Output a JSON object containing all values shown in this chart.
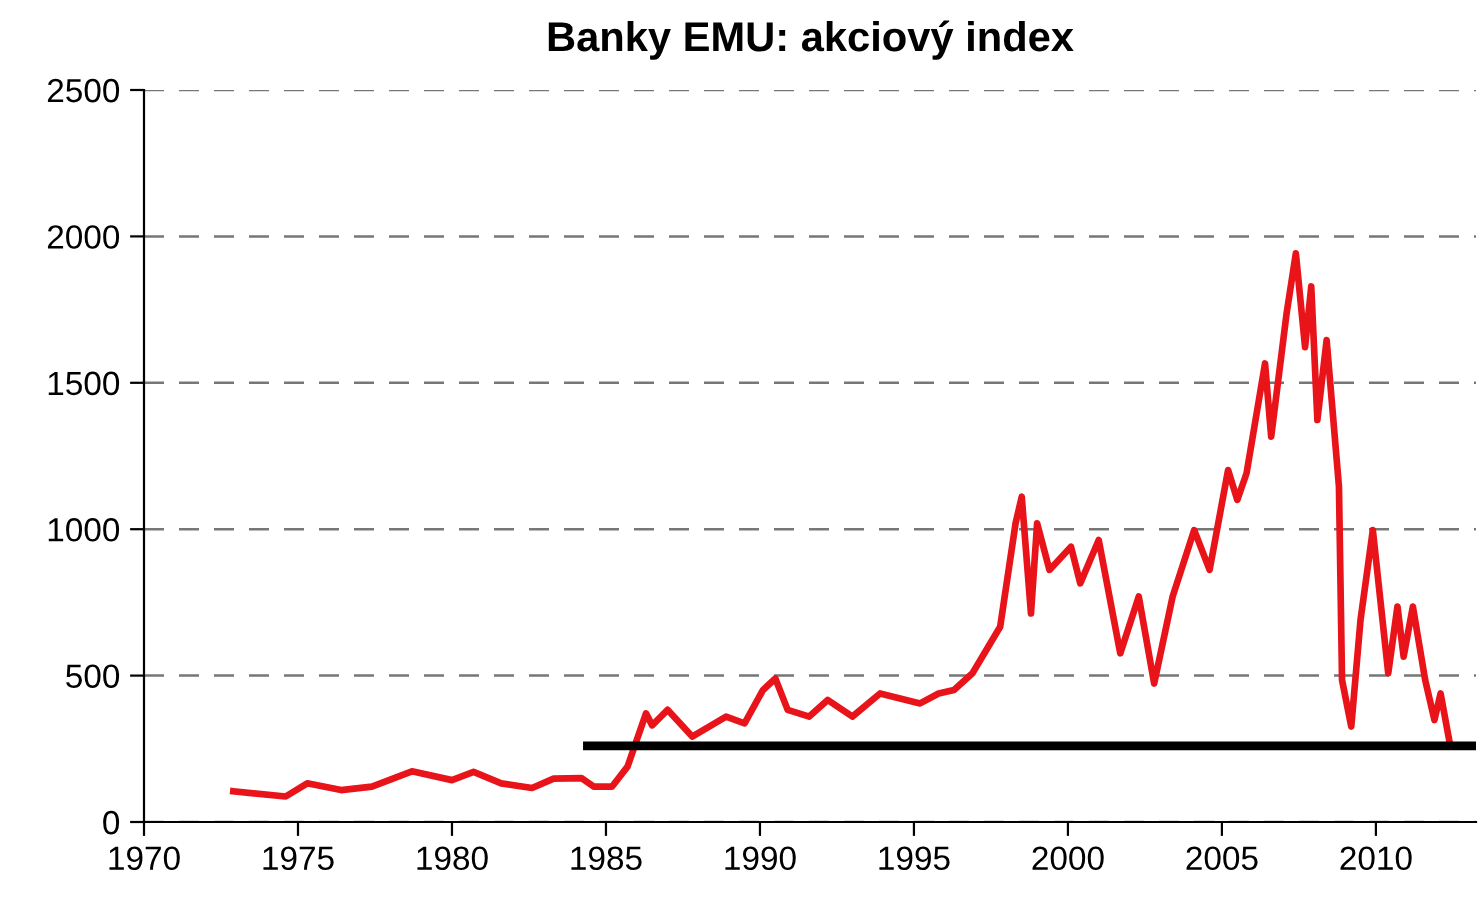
{
  "chart_data": {
    "type": "line",
    "title": "Banky EMU: akciový index",
    "xlim": [
      1970,
      2013.25
    ],
    "xticks": [
      1970,
      1975,
      1980,
      1985,
      1990,
      1995,
      2000,
      2005,
      2010
    ],
    "ylim": [
      0,
      2500
    ],
    "yticks": [
      0,
      500,
      1000,
      1500,
      2000,
      2500
    ],
    "grid": "y",
    "line_style": "solid",
    "marker": "none",
    "series": [
      {
        "color": "#e8141a",
        "x": [
          1972.9,
          1974.6,
          1975.3,
          1976.4,
          1977.4,
          1978.7,
          1980.0,
          1980.7,
          1981.6,
          1982.6,
          1983.3,
          1984.2,
          1984.6,
          1985.2,
          1985.7,
          1986.3,
          1986.5,
          1987.0,
          1987.8,
          1988.9,
          1989.5,
          1990.1,
          1990.5,
          1990.9,
          1991.6,
          1992.2,
          1993.0,
          1993.9,
          1995.2,
          1995.8,
          1996.3,
          1996.9,
          1997.8,
          1998.3,
          1998.5,
          1998.8,
          1999.0,
          1999.4,
          2000.1,
          2000.4,
          2001.0,
          2001.7,
          2002.3,
          2002.8,
          2003.4,
          2004.1,
          2004.6,
          2005.2,
          2005.5,
          2005.8,
          2006.4,
          2006.6,
          2007.1,
          2007.4,
          2007.7,
          2007.9,
          2008.1,
          2008.4,
          2008.8,
          2008.9,
          2009.2,
          2009.5,
          2009.9,
          2010.4,
          2010.7,
          2010.9,
          2011.2,
          2011.6,
          2011.9,
          2012.1,
          2012.4
        ],
        "values": [
          105,
          87,
          132,
          109,
          121,
          173,
          143,
          171,
          132,
          116,
          148,
          150,
          121,
          121,
          189,
          371,
          330,
          383,
          292,
          360,
          337,
          451,
          490,
          383,
          360,
          417,
          360,
          439,
          405,
          439,
          451,
          508,
          667,
          1020,
          1111,
          712,
          1020,
          861,
          940,
          815,
          963,
          576,
          770,
          473,
          770,
          997,
          861,
          1202,
          1100,
          1191,
          1566,
          1316,
          1737,
          1942,
          1622,
          1829,
          1373,
          1646,
          1146,
          485,
          326,
          690,
          997,
          508,
          736,
          565,
          736,
          485,
          348,
          439,
          268
        ]
      },
      {
        "color": "#000000",
        "x": [
          1984.4,
          2013.25
        ],
        "values": [
          260,
          260
        ]
      }
    ]
  }
}
